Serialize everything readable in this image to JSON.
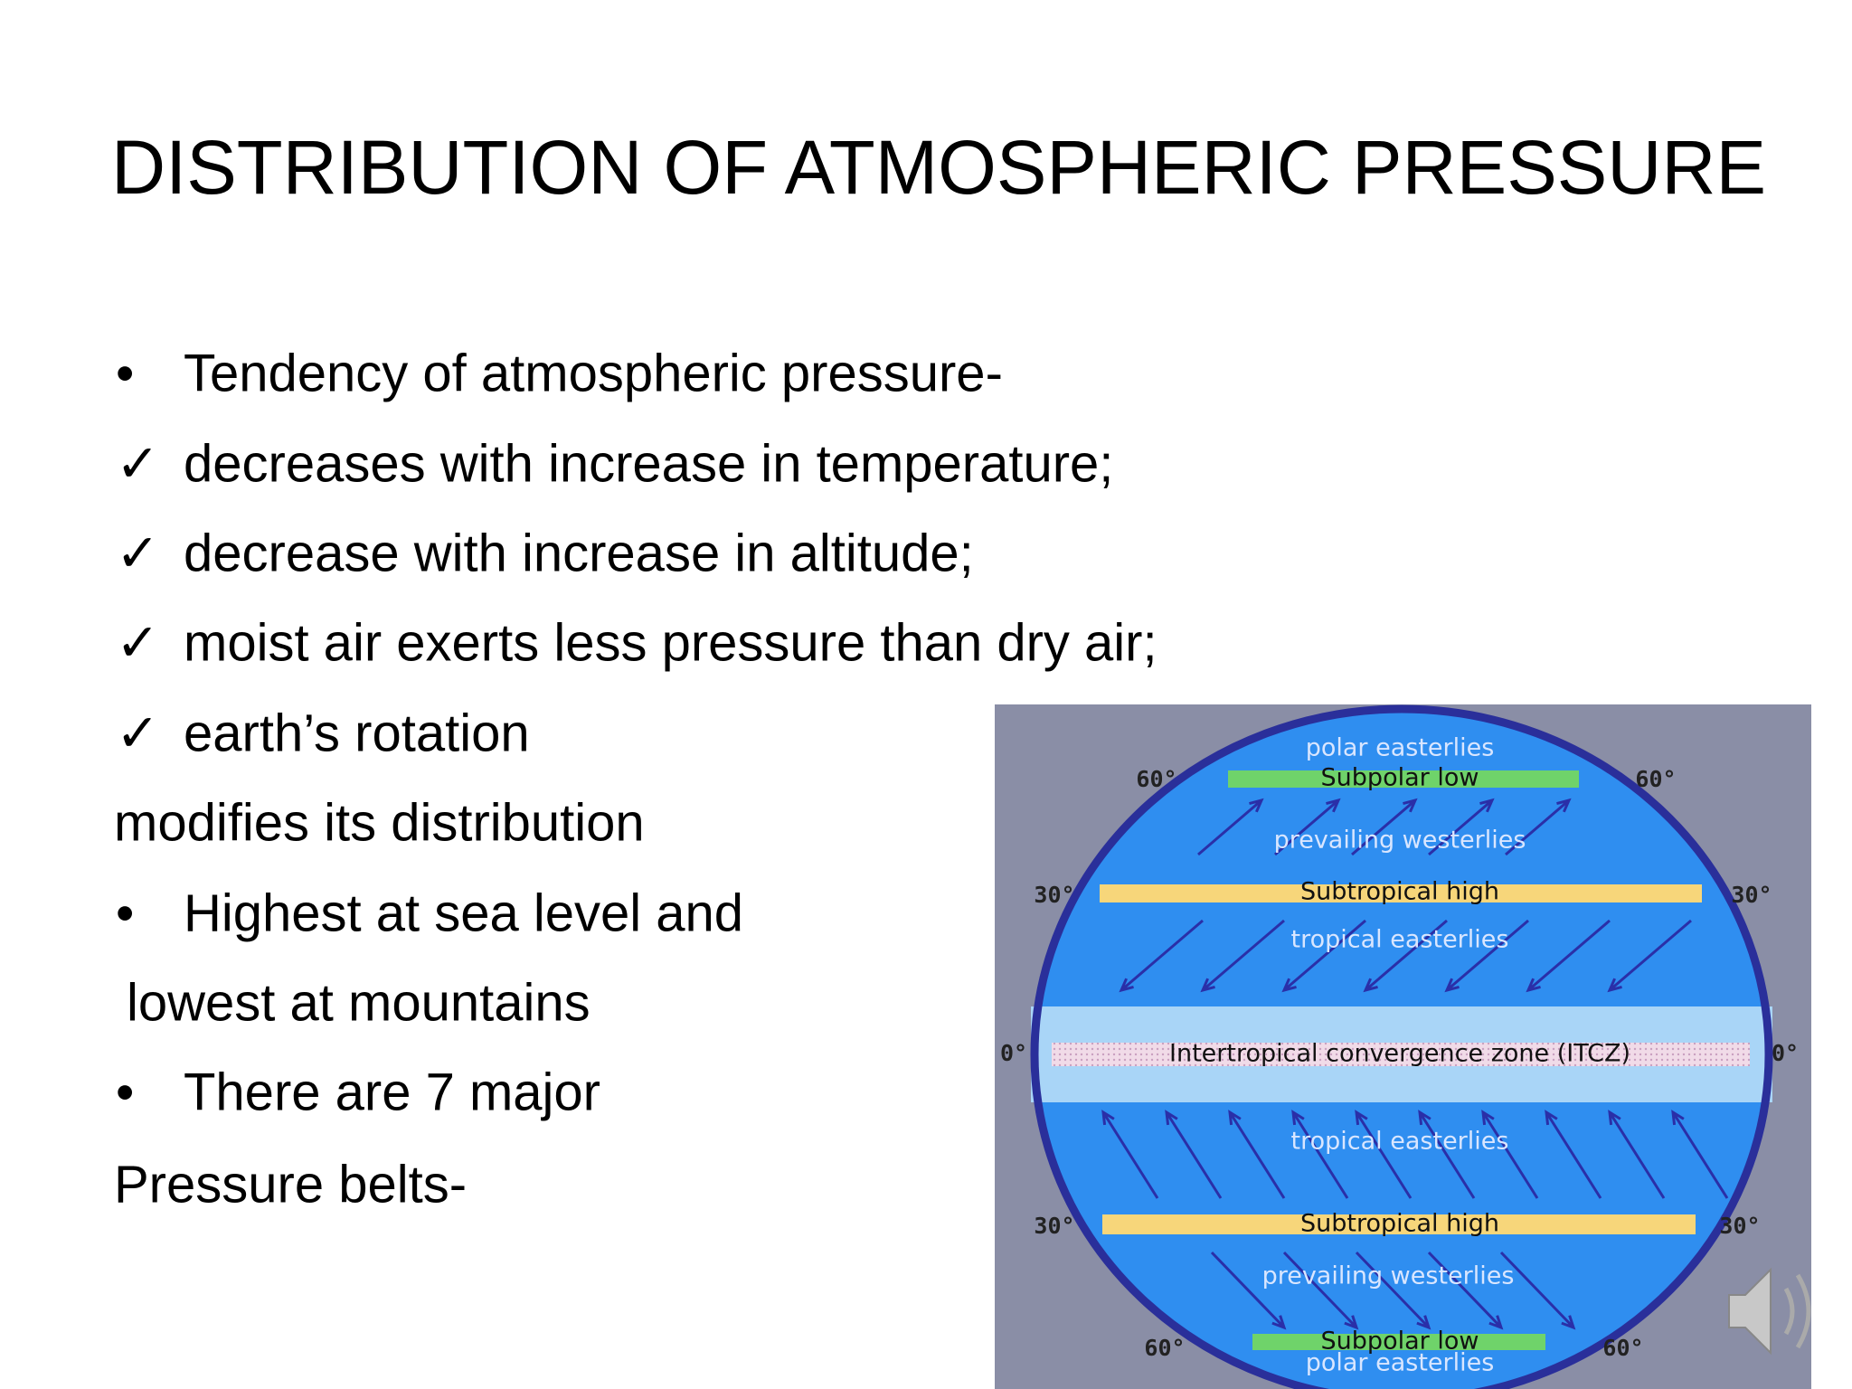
{
  "title": "DISTRIBUTION OF ATMOSPHERIC PRESSURE",
  "bullets": [
    {
      "marker": "•",
      "text": "Tendency of atmospheric pressure-"
    },
    {
      "marker": "✓",
      "text": "decreases  with increase in temperature;"
    },
    {
      "marker": "✓",
      "text": "decrease with increase in altitude;"
    },
    {
      "marker": "✓",
      "text": "moist air exerts less pressure than dry air;"
    },
    {
      "marker": "✓",
      "text": "earth’s rotation"
    },
    {
      "text": "modifies its distribution"
    },
    {
      "marker": "•",
      "text": "Highest at sea level and"
    },
    {
      "text": "lowest at mountains"
    },
    {
      "marker": "•",
      "text": "There are 7 major"
    },
    {
      "text": "Pressure belts-"
    }
  ],
  "diagram": {
    "belts": [
      "polar easterlies",
      "Subpolar low",
      "prevailing westerlies",
      "Subtropical high",
      "tropical easterlies",
      "Intertropical convergence zone (ITCZ)",
      "tropical easterlies",
      "Subtropical high",
      "prevailing westerlies",
      "Subpolar low",
      "polar easterlies"
    ],
    "latitudes": [
      "60°",
      "60°",
      "30°",
      "30°",
      "0°",
      "0°",
      "30°",
      "30°",
      "60°",
      "60°"
    ]
  }
}
